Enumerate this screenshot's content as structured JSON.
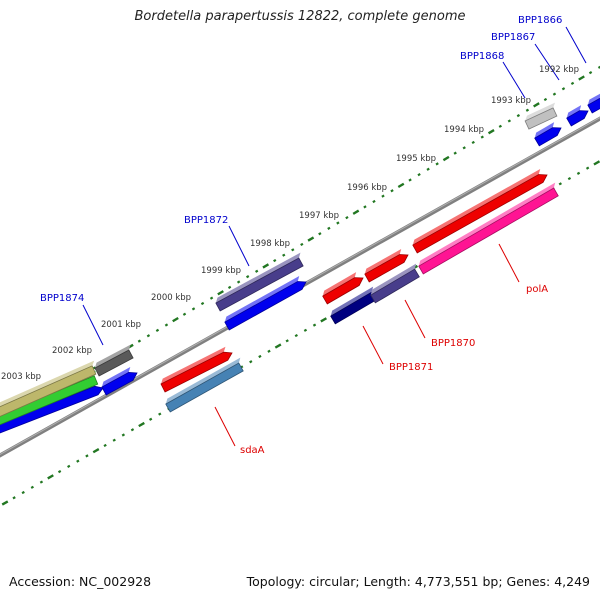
{
  "title": "Bordetella parapertussis 12822, complete genome",
  "footer": {
    "accession": "Accession: NC_002928",
    "summary": "Topology: circular; Length: 4,773,551 bp; Genes: 4,249"
  },
  "colors": {
    "background": "#ffffff",
    "backbone": "#808080",
    "tick": "#227722",
    "kbp_label": "#333333",
    "label_forward": "#0000cc",
    "label_reverse": "#dd0000"
  },
  "kbp_ticks": [
    "1992 kbp",
    "1993 kbp",
    "1994 kbp",
    "1995 kbp",
    "1996 kbp",
    "1997 kbp",
    "1998 kbp",
    "1999 kbp",
    "2000 kbp",
    "2001 kbp",
    "2002 kbp",
    "2003 kbp"
  ],
  "genes_forward": [
    {
      "label": "BPP1866",
      "color": "#0000ee"
    },
    {
      "label": "BPP1867",
      "color": "#0000ee"
    },
    {
      "label": "BPP1868",
      "color": "#0000ee"
    },
    {
      "label": "BPP1872",
      "color": "#0000ee"
    },
    {
      "label": "BPP1874",
      "color": "#0000ee"
    }
  ],
  "genes_reverse": [
    {
      "label": "polA",
      "color": "#ff1493"
    },
    {
      "label": "BPP1870",
      "color": "#483d8b"
    },
    {
      "label": "BPP1871",
      "color": "#000080"
    },
    {
      "label": "sdaA",
      "color": "#4682b4"
    }
  ],
  "features_unlabeled": [
    {
      "kind": "forward",
      "color": "#0000ee"
    },
    {
      "kind": "forward",
      "color": "#0000ee"
    },
    {
      "kind": "forward",
      "color": "#0000ee"
    },
    {
      "kind": "misc",
      "color": "#c0c0c0"
    },
    {
      "kind": "misc",
      "color": "#5a5a5a"
    },
    {
      "kind": "misc",
      "color": "#483d8b"
    },
    {
      "kind": "misc",
      "color": "#ee0000"
    },
    {
      "kind": "misc",
      "color": "#bdb76b"
    },
    {
      "kind": "misc",
      "color": "#32cd32"
    }
  ]
}
